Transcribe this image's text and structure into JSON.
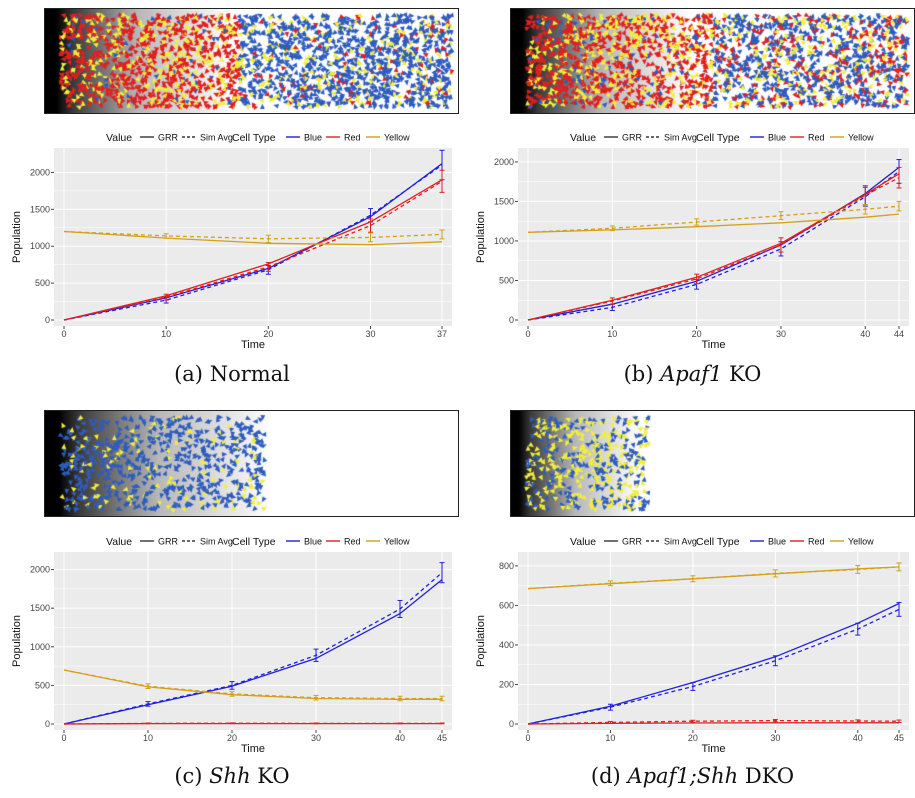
{
  "legend": {
    "value_title": "Value",
    "value_items": [
      "GRR",
      "Sim Avg"
    ],
    "cell_title": "Cell Type",
    "cell_items": [
      "Blue",
      "Red",
      "Yellow"
    ]
  },
  "colors": {
    "blue": "#1f1fdd",
    "red": "#e02020",
    "yellow": "#d4a017",
    "grr": "#111111",
    "panel_bg": "#ebebeb",
    "grid": "#ffffff"
  },
  "chart_data": [
    {
      "type": "line",
      "caption": {
        "prefix": "(a) ",
        "italic": "",
        "suffix": "Normal"
      },
      "xlabel": "Time",
      "ylabel": "Population",
      "xlim": [
        0,
        37
      ],
      "ylim": [
        0,
        2250
      ],
      "xticks": [
        0,
        10,
        20,
        30,
        37
      ],
      "yticks": [
        0,
        500,
        1000,
        1500,
        2000
      ],
      "x": [
        0,
        10,
        20,
        30,
        37
      ],
      "series": [
        {
          "name": "Blue",
          "kind": "GRR",
          "values": [
            0,
            300,
            700,
            1400,
            2120
          ]
        },
        {
          "name": "Blue",
          "kind": "Sim Avg",
          "values": [
            0,
            270,
            680,
            1420,
            2100
          ],
          "err": [
            10,
            40,
            60,
            90,
            200
          ]
        },
        {
          "name": "Red",
          "kind": "GRR",
          "values": [
            0,
            330,
            760,
            1330,
            1900
          ]
        },
        {
          "name": "Red",
          "kind": "Sim Avg",
          "values": [
            0,
            310,
            720,
            1280,
            1880
          ],
          "err": [
            10,
            40,
            60,
            90,
            150
          ]
        },
        {
          "name": "Yellow",
          "kind": "GRR",
          "values": [
            1200,
            1110,
            1040,
            1020,
            1060
          ]
        },
        {
          "name": "Yellow",
          "kind": "Sim Avg",
          "values": [
            1200,
            1140,
            1100,
            1120,
            1160
          ],
          "err": [
            10,
            30,
            50,
            60,
            60
          ]
        }
      ]
    },
    {
      "type": "line",
      "caption": {
        "prefix": "(b) ",
        "italic": "Apaf1",
        "suffix": " KO"
      },
      "xlabel": "Time",
      "ylabel": "Population",
      "xlim": [
        0,
        44
      ],
      "ylim": [
        0,
        2100
      ],
      "xticks": [
        0,
        10,
        20,
        30,
        40,
        44
      ],
      "yticks": [
        0,
        500,
        1000,
        1500,
        2000
      ],
      "x": [
        0,
        10,
        20,
        30,
        40,
        44
      ],
      "series": [
        {
          "name": "Blue",
          "kind": "GRR",
          "values": [
            0,
            200,
            490,
            950,
            1600,
            1930
          ]
        },
        {
          "name": "Blue",
          "kind": "Sim Avg",
          "values": [
            0,
            160,
            450,
            900,
            1560,
            1880
          ],
          "err": [
            10,
            40,
            60,
            90,
            120,
            150
          ]
        },
        {
          "name": "Red",
          "kind": "GRR",
          "values": [
            0,
            250,
            540,
            970,
            1590,
            1850
          ]
        },
        {
          "name": "Red",
          "kind": "Sim Avg",
          "values": [
            0,
            240,
            520,
            950,
            1580,
            1800
          ],
          "err": [
            10,
            40,
            60,
            90,
            120,
            130
          ]
        },
        {
          "name": "Yellow",
          "kind": "GRR",
          "values": [
            1110,
            1140,
            1180,
            1230,
            1300,
            1340
          ]
        },
        {
          "name": "Yellow",
          "kind": "Sim Avg",
          "values": [
            1110,
            1160,
            1240,
            1320,
            1400,
            1440
          ],
          "err": [
            10,
            30,
            40,
            50,
            60,
            60
          ]
        }
      ]
    },
    {
      "type": "line",
      "caption": {
        "prefix": "(c) ",
        "italic": "Shh",
        "suffix": " KO"
      },
      "xlabel": "Time",
      "ylabel": "Population",
      "xlim": [
        0,
        45
      ],
      "ylim": [
        0,
        2150
      ],
      "xticks": [
        0,
        10,
        20,
        30,
        40,
        45
      ],
      "yticks": [
        0,
        500,
        1000,
        1500,
        2000
      ],
      "x": [
        0,
        10,
        20,
        30,
        40,
        45
      ],
      "series": [
        {
          "name": "Blue",
          "kind": "GRR",
          "values": [
            0,
            250,
            490,
            850,
            1430,
            1870
          ]
        },
        {
          "name": "Blue",
          "kind": "Sim Avg",
          "values": [
            0,
            260,
            500,
            890,
            1490,
            1960
          ],
          "err": [
            10,
            30,
            50,
            80,
            110,
            130
          ]
        },
        {
          "name": "Red",
          "kind": "GRR",
          "values": [
            0,
            5,
            5,
            5,
            5,
            5
          ]
        },
        {
          "name": "Red",
          "kind": "Sim Avg",
          "values": [
            0,
            8,
            10,
            8,
            8,
            8
          ],
          "err": [
            3,
            5,
            5,
            5,
            5,
            5
          ]
        },
        {
          "name": "Yellow",
          "kind": "GRR",
          "values": [
            700,
            480,
            380,
            330,
            320,
            320
          ]
        },
        {
          "name": "Yellow",
          "kind": "Sim Avg",
          "values": [
            700,
            490,
            390,
            340,
            330,
            330
          ],
          "err": [
            10,
            30,
            30,
            30,
            30,
            30
          ]
        }
      ]
    },
    {
      "type": "line",
      "caption": {
        "prefix": "(d) ",
        "italic": "Apaf1;Shh",
        "suffix": " DKO"
      },
      "xlabel": "Time",
      "ylabel": "Population",
      "xlim": [
        0,
        45
      ],
      "ylim": [
        0,
        840
      ],
      "xticks": [
        0,
        10,
        20,
        30,
        40,
        45
      ],
      "yticks": [
        0,
        200,
        400,
        600,
        800
      ],
      "x": [
        0,
        10,
        20,
        30,
        40,
        45
      ],
      "series": [
        {
          "name": "Blue",
          "kind": "GRR",
          "values": [
            0,
            90,
            210,
            340,
            510,
            610
          ]
        },
        {
          "name": "Blue",
          "kind": "Sim Avg",
          "values": [
            0,
            85,
            190,
            320,
            480,
            580
          ],
          "err": [
            5,
            15,
            20,
            25,
            30,
            35
          ]
        },
        {
          "name": "Red",
          "kind": "GRR",
          "values": [
            0,
            3,
            5,
            6,
            6,
            6
          ]
        },
        {
          "name": "Red",
          "kind": "Sim Avg",
          "values": [
            0,
            8,
            14,
            17,
            15,
            14
          ],
          "err": [
            3,
            5,
            5,
            6,
            6,
            6
          ]
        },
        {
          "name": "Yellow",
          "kind": "GRR",
          "values": [
            685,
            710,
            735,
            760,
            785,
            795
          ]
        },
        {
          "name": "Yellow",
          "kind": "Sim Avg",
          "values": [
            685,
            712,
            735,
            762,
            782,
            795
          ],
          "err": [
            5,
            12,
            15,
            18,
            20,
            20
          ]
        }
      ]
    }
  ]
}
